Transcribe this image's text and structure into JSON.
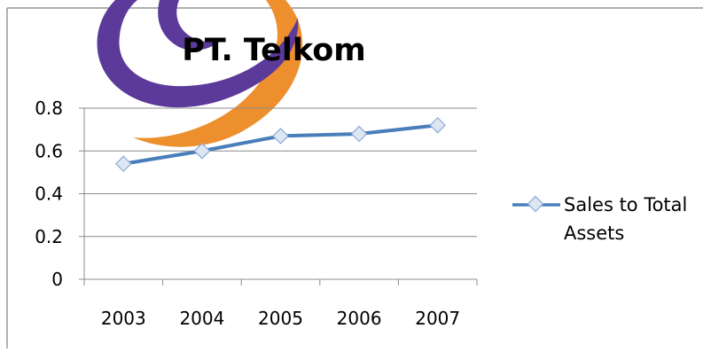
{
  "chart_data": {
    "type": "line",
    "title": "PT. Telkom",
    "categories": [
      "2003",
      "2004",
      "2005",
      "2006",
      "2007"
    ],
    "series": [
      {
        "name": "Sales to Total Assets",
        "values": [
          0.54,
          0.6,
          0.67,
          0.68,
          0.72
        ]
      }
    ],
    "legend": {
      "position": "right",
      "lines": [
        "Sales to Total",
        "Assets"
      ]
    },
    "y_ticks": [
      "0",
      "0.2",
      "0.4",
      "0.6",
      "0.8"
    ],
    "ylim": [
      0,
      0.8
    ],
    "grid": true,
    "colors": {
      "line": "#4a7ebb",
      "marker_fill": "#dde6f3",
      "marker_stroke": "#8eaad6",
      "grid": "#8c8c8c",
      "border": "#7f7f7f",
      "logo_purple": "#5b3a9a",
      "logo_orange": "#ee8f2e"
    }
  }
}
